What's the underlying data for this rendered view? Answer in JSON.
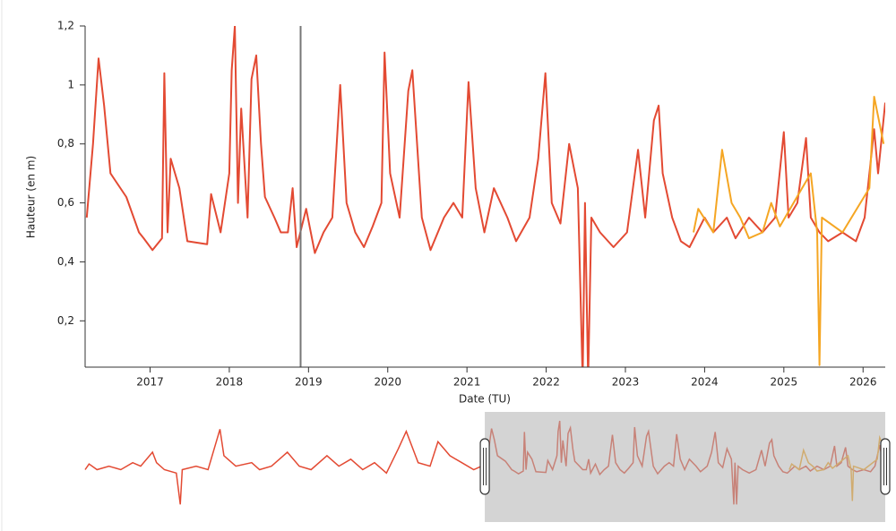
{
  "chart_data": {
    "type": "line",
    "ylabel": "Hauteur (en m)",
    "xlabel": "Date (TU)",
    "xlim": [
      2016.18,
      2026.28
    ],
    "xticks": [
      2017,
      2018,
      2019,
      2020,
      2021,
      2022,
      2023,
      2024,
      2025,
      2026
    ],
    "ylim": [
      0.043,
      1.2
    ],
    "yticks": [
      {
        "value": 0.2,
        "label": "0,2"
      },
      {
        "value": 0.4,
        "label": "0,4"
      },
      {
        "value": 0.6,
        "label": "0,6"
      },
      {
        "value": 0.8,
        "label": "0,8"
      },
      1,
      {
        "value": 1.2,
        "label": "1,2"
      }
    ],
    "cursor_x": 2018.9,
    "series": [
      {
        "color": "#e34a33",
        "x": [
          2016.2,
          2016.28,
          2016.35,
          2016.42,
          2016.5,
          2016.7,
          2016.86,
          2016.92,
          2017.03,
          2017.15,
          2017.18,
          2017.22,
          2017.26,
          2017.37,
          2017.47,
          2017.72,
          2017.77,
          2017.89,
          2018.0,
          2018.03,
          2018.07,
          2018.11,
          2018.15,
          2018.23,
          2018.28,
          2018.34,
          2018.4,
          2018.45,
          2018.57,
          2018.65,
          2018.74,
          2018.8,
          2018.85,
          2018.97,
          2019.08,
          2019.19,
          2019.3,
          2019.4,
          2019.48,
          2019.59,
          2019.7,
          2019.81,
          2019.92,
          2019.96,
          2020.03,
          2020.15,
          2020.26,
          2020.31,
          2020.43,
          2020.54,
          2020.71,
          2020.83,
          2020.94,
          2021.02,
          2021.11,
          2021.22,
          2021.34,
          2021.51,
          2021.62,
          2021.79,
          2021.9,
          2021.99,
          2022.07,
          2022.18,
          2022.29,
          2022.4,
          2022.46,
          2022.49,
          2022.53,
          2022.57,
          2022.68,
          2022.85,
          2023.02,
          2023.16,
          2023.25,
          2023.36,
          2023.42,
          2023.47,
          2023.59,
          2023.7,
          2023.81,
          2024.0,
          2024.11,
          2024.28,
          2024.39,
          2024.56,
          2024.73,
          2024.89,
          2025.0,
          2025.06,
          2025.17,
          2025.28,
          2025.34,
          2025.45,
          2025.56,
          2025.74,
          2025.91,
          2026.02,
          2026.14,
          2026.19,
          2026.28
        ],
        "values": [
          0.55,
          0.8,
          1.09,
          0.93,
          0.7,
          0.62,
          0.5,
          0.48,
          0.44,
          0.48,
          1.04,
          0.5,
          0.75,
          0.65,
          0.47,
          0.46,
          0.63,
          0.5,
          0.7,
          1.05,
          1.2,
          0.6,
          0.92,
          0.55,
          1.02,
          1.1,
          0.8,
          0.62,
          0.55,
          0.5,
          0.5,
          0.65,
          0.45,
          0.58,
          0.43,
          0.5,
          0.55,
          1.0,
          0.6,
          0.5,
          0.45,
          0.52,
          0.6,
          1.11,
          0.7,
          0.55,
          0.98,
          1.05,
          0.55,
          0.44,
          0.55,
          0.6,
          0.55,
          1.01,
          0.65,
          0.5,
          0.65,
          0.55,
          0.47,
          0.55,
          0.75,
          1.04,
          0.6,
          0.53,
          0.8,
          0.65,
          0.0,
          0.6,
          0.0,
          0.55,
          0.5,
          0.45,
          0.5,
          0.78,
          0.55,
          0.88,
          0.93,
          0.7,
          0.55,
          0.47,
          0.45,
          0.55,
          0.5,
          0.55,
          0.48,
          0.55,
          0.5,
          0.55,
          0.84,
          0.55,
          0.6,
          0.82,
          0.55,
          0.5,
          0.47,
          0.5,
          0.47,
          0.55,
          0.85,
          0.7,
          0.94
        ]
      },
      {
        "color": "#f5a623",
        "x": [
          2023.86,
          2023.92,
          2024.11,
          2024.22,
          2024.34,
          2024.45,
          2024.56,
          2024.73,
          2024.84,
          2024.95,
          2025.23,
          2025.34,
          2025.42,
          2025.45,
          2025.48,
          2025.74,
          2026.08,
          2026.14,
          2026.26
        ],
        "values": [
          0.5,
          0.58,
          0.5,
          0.78,
          0.6,
          0.55,
          0.48,
          0.5,
          0.6,
          0.52,
          0.65,
          0.7,
          0.5,
          0.05,
          0.55,
          0.5,
          0.65,
          0.96,
          0.8
        ]
      }
    ],
    "navigator": {
      "color": "#e34a33",
      "x": [
        2006.1,
        2006.2,
        2006.4,
        2006.7,
        2007.0,
        2007.3,
        2007.5,
        2007.8,
        2007.9,
        2008.1,
        2008.4,
        2008.5,
        2008.55,
        2008.9,
        2009.2,
        2009.5,
        2009.6,
        2009.9,
        2010.3,
        2010.5,
        2010.8,
        2011.2,
        2011.5,
        2011.8,
        2012.2,
        2012.5,
        2012.8,
        2013.1,
        2013.4,
        2013.7,
        2014.0,
        2014.2,
        2014.5,
        2014.8,
        2015.0,
        2015.3,
        2015.6,
        2015.9,
        2016.1
      ],
      "values": [
        0.5,
        0.58,
        0.5,
        0.55,
        0.5,
        0.6,
        0.55,
        0.75,
        0.6,
        0.5,
        0.45,
        0.0,
        0.5,
        0.55,
        0.5,
        1.08,
        0.7,
        0.55,
        0.6,
        0.5,
        0.55,
        0.75,
        0.55,
        0.5,
        0.7,
        0.55,
        0.65,
        0.5,
        0.6,
        0.45,
        0.8,
        1.05,
        0.6,
        0.55,
        0.9,
        0.7,
        0.6,
        0.5,
        0.55
      ]
    }
  }
}
